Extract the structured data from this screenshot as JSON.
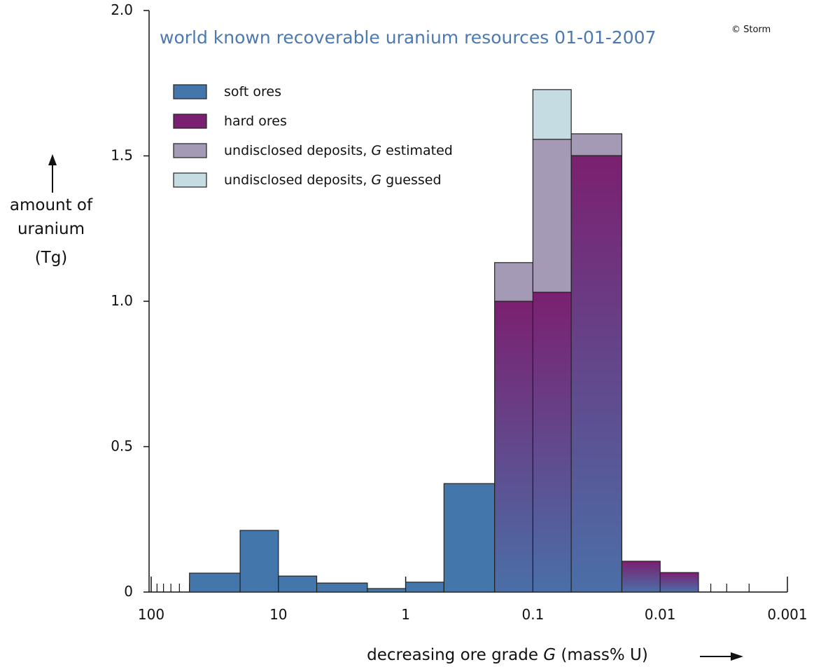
{
  "chart_data": {
    "type": "histogram",
    "title": "world known recoverable uranium resources 01-01-2007",
    "annotation": "© Storm",
    "ylabel": [
      "amount of",
      "uranium",
      "(Tg)"
    ],
    "xlabel": "decreasing ore grade G (mass% U)",
    "xscale": "log",
    "xlim": [
      100,
      0.001
    ],
    "xticks": [
      100,
      10,
      1,
      0.1,
      0.01,
      0.001
    ],
    "ylim": [
      0,
      2
    ],
    "yticks": [
      0,
      0.5,
      {
        "value": 1,
        "label": "1.0"
      },
      1.5,
      {
        "value": 2,
        "label": "2.0"
      }
    ],
    "bins": [
      50,
      20,
      10,
      5,
      2,
      1,
      0.5,
      0.2,
      0.1,
      0.05,
      0.02,
      0.01,
      0.005
    ],
    "stacked": true,
    "series": [
      {
        "name": "soft ores",
        "color": "#4377ac",
        "values": [
          0.065,
          0.212,
          0.055,
          0.031,
          0.012,
          0.034,
          0.373,
          0,
          0,
          0,
          0,
          0
        ]
      },
      {
        "name": "hard ores",
        "color": "#7b2070",
        "values": [
          0,
          0,
          0,
          0,
          0,
          0,
          0,
          1.0,
          1.031,
          1.501,
          0.106,
          0.067
        ]
      },
      {
        "name": "undisclosed deposits, G estimated",
        "color": "#a59ab5",
        "values": [
          0,
          0,
          0,
          0,
          0,
          0,
          0,
          0.133,
          0.526,
          0.075,
          0,
          0
        ]
      },
      {
        "name": "undisclosed deposits, G guessed",
        "color": "#c5dde2",
        "values": [
          0,
          0,
          0,
          0,
          0,
          0,
          0,
          0,
          0.171,
          0,
          0,
          0
        ]
      }
    ]
  }
}
